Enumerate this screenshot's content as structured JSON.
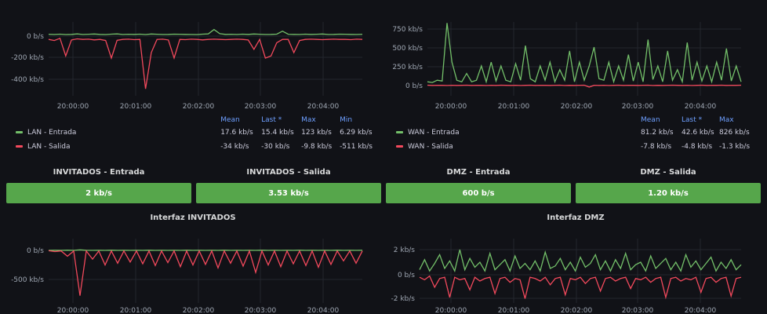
{
  "colors": {
    "background": "#111217",
    "green": "#73bf69",
    "red": "#f2495c",
    "stat_green": "#56a64b",
    "header_blue": "#6e9fff",
    "grid": "#2a2d35"
  },
  "lan_chart": {
    "chart_data": {
      "type": "line",
      "x_ticks": [
        "20:00:00",
        "20:01:00",
        "20:02:00",
        "20:03:00",
        "20:04:00"
      ],
      "y_ticks": [
        "0 b/s",
        "-200 kb/s",
        "-400 kb/s"
      ],
      "series": [
        {
          "name": "LAN - Entrada",
          "color": "#73bf69",
          "values": [
            17,
            15,
            18,
            14,
            16,
            20,
            15,
            17,
            19,
            16,
            14,
            18,
            20,
            15,
            17,
            16,
            18,
            14,
            19,
            17,
            15,
            16,
            18,
            17,
            16,
            15,
            14,
            18,
            20,
            60,
            22,
            16,
            17,
            15,
            18,
            16,
            19,
            17,
            15,
            16,
            18,
            45,
            17,
            16,
            15,
            18,
            16,
            17,
            19,
            15,
            16,
            18,
            17,
            16,
            15,
            17
          ]
        },
        {
          "name": "LAN - Salida",
          "color": "#f2495c",
          "values": [
            -30,
            -40,
            -20,
            -180,
            -35,
            -25,
            -30,
            -28,
            -34,
            -30,
            -40,
            -200,
            -38,
            -30,
            -28,
            -32,
            -30,
            -480,
            -150,
            -30,
            -28,
            -35,
            -200,
            -30,
            -32,
            -28,
            -30,
            -34,
            -30,
            -28,
            -30,
            -32,
            -30,
            -28,
            -30,
            -35,
            -120,
            -30,
            -200,
            -180,
            -60,
            -30,
            -30,
            -150,
            -40,
            -30,
            -28,
            -30,
            -32,
            -30,
            -28,
            -30,
            -30,
            -32,
            -28,
            -30
          ]
        }
      ],
      "legend_headers": [
        "Mean",
        "Last *",
        "Max",
        "Min"
      ],
      "legend_rows": [
        {
          "label": "LAN - Entrada",
          "color": "#73bf69",
          "stats": [
            "17.6 kb/s",
            "15.4 kb/s",
            "123 kb/s",
            "6.29 kb/s"
          ]
        },
        {
          "label": "LAN - Salida",
          "color": "#f2495c",
          "stats": [
            "-34 kb/s",
            "-30 kb/s",
            "-9.8 kb/s",
            "-511 kb/s"
          ]
        }
      ]
    }
  },
  "wan_chart": {
    "chart_data": {
      "type": "line",
      "x_ticks": [
        "20:00:00",
        "20:01:00",
        "20:02:00",
        "20:03:00",
        "20:04:00"
      ],
      "y_ticks": [
        "750 kb/s",
        "500 kb/s",
        "250 kb/s",
        "0 b/s"
      ],
      "series": [
        {
          "name": "WAN - Entrada",
          "color": "#73bf69",
          "values": [
            40,
            30,
            60,
            50,
            820,
            300,
            60,
            40,
            150,
            40,
            60,
            250,
            40,
            300,
            50,
            250,
            60,
            40,
            280,
            60,
            520,
            80,
            40,
            250,
            60,
            300,
            40,
            200,
            60,
            450,
            40,
            300,
            60,
            250,
            500,
            80,
            60,
            300,
            40,
            250,
            60,
            400,
            50,
            300,
            40,
            600,
            70,
            250,
            40,
            450,
            60,
            200,
            40,
            560,
            60,
            300,
            50,
            250,
            40,
            300,
            60,
            480,
            50,
            250,
            40
          ]
        },
        {
          "name": "WAN - Salida",
          "color": "#f2495c",
          "values": [
            -5,
            -8,
            -6,
            -7,
            -9,
            -6,
            -8,
            -7,
            -5,
            -8,
            -6,
            -7,
            -9,
            -6,
            -8,
            -5,
            -7,
            -8,
            -6,
            -9,
            -7,
            -5,
            -8,
            -6,
            -7,
            -8,
            -6,
            -5,
            -9,
            -7,
            -8,
            -6,
            -5,
            -30,
            -7,
            -8,
            -6,
            -9,
            -7,
            -5,
            -8,
            -6,
            -7,
            -8,
            -6,
            -5,
            -9,
            -7,
            -8,
            -6,
            -5,
            -7,
            -8,
            -6,
            -9,
            -7,
            -5,
            -8,
            -6,
            -7,
            -5,
            -8,
            -6,
            -7,
            -5
          ]
        }
      ],
      "legend_headers": [
        "Mean",
        "Last *",
        "Max"
      ],
      "legend_rows": [
        {
          "label": "WAN - Entrada",
          "color": "#73bf69",
          "stats": [
            "81.2 kb/s",
            "42.6 kb/s",
            "826 kb/s"
          ]
        },
        {
          "label": "WAN - Salida",
          "color": "#f2495c",
          "stats": [
            "-7.8 kb/s",
            "-4.8 kb/s",
            "-1.3 kb/s"
          ]
        }
      ]
    }
  },
  "stats": [
    {
      "title": "INVITADOS - Entrada",
      "value": "2 kb/s"
    },
    {
      "title": "INVITADOS - Salida",
      "value": "3.53 kb/s"
    },
    {
      "title": "DMZ - Entrada",
      "value": "600 b/s"
    },
    {
      "title": "DMZ - Salida",
      "value": "1.20 kb/s"
    }
  ],
  "invitados_chart": {
    "title": "Interfaz INVITADOS",
    "chart_data": {
      "type": "line",
      "x_ticks": [
        "20:00:00",
        "20:01:00",
        "20:02:00",
        "20:03:00",
        "20:04:00"
      ],
      "y_ticks": [
        "0 b/s",
        "-500 kb/s"
      ],
      "series": [
        {
          "name": "",
          "color": "#73bf69",
          "values": [
            2,
            3,
            2,
            4,
            2,
            10,
            3,
            2,
            3,
            2,
            4,
            2,
            3,
            2,
            3,
            2,
            4,
            2,
            3,
            2,
            3,
            2,
            4,
            2,
            3,
            2,
            3,
            2,
            4,
            2,
            3,
            2,
            3,
            2,
            4,
            2,
            3,
            2,
            3,
            2,
            4,
            2,
            3,
            2,
            3,
            2,
            4,
            2,
            3,
            2,
            3
          ]
        },
        {
          "name": "",
          "color": "#f2495c",
          "values": [
            -5,
            -20,
            -10,
            -100,
            -10,
            -780,
            -10,
            -150,
            -10,
            -250,
            -10,
            -220,
            -10,
            -200,
            -10,
            -230,
            -10,
            -260,
            -10,
            -210,
            -10,
            -280,
            -10,
            -250,
            -10,
            -240,
            -10,
            -300,
            -10,
            -220,
            -10,
            -270,
            -10,
            -380,
            -10,
            -250,
            -10,
            -280,
            -10,
            -230,
            -10,
            -260,
            -10,
            -290,
            -10,
            -240,
            -10,
            -180,
            -10,
            -220,
            -10
          ]
        }
      ]
    }
  },
  "dmz_chart": {
    "title": "Interfaz DMZ",
    "chart_data": {
      "type": "line",
      "x_ticks": [
        "20:00:00",
        "20:01:00",
        "20:02:00",
        "20:03:00",
        "20:04:00"
      ],
      "y_ticks": [
        "2 kb/s",
        "0 b/s",
        "-2 kb/s"
      ],
      "series": [
        {
          "name": "",
          "color": "#73bf69",
          "values": [
            0.4,
            1.2,
            0.3,
            0.9,
            1.6,
            0.5,
            1.1,
            0.3,
            2.0,
            0.4,
            1.3,
            0.6,
            1.0,
            0.3,
            1.7,
            0.4,
            0.8,
            1.2,
            0.3,
            1.5,
            0.5,
            0.9,
            0.4,
            1.1,
            0.3,
            1.8,
            0.5,
            0.7,
            1.3,
            0.4,
            1.0,
            0.3,
            1.4,
            0.6,
            0.9,
            1.6,
            0.4,
            1.1,
            0.3,
            1.2,
            0.5,
            1.7,
            0.4,
            0.8,
            1.0,
            0.3,
            1.5,
            0.5,
            0.9,
            1.3,
            0.4,
            1.0,
            0.3,
            1.6,
            0.6,
            1.1,
            0.4,
            0.9,
            1.4,
            0.3,
            1.0,
            0.5,
            1.2,
            0.4,
            0.8
          ]
        },
        {
          "name": "",
          "color": "#f2495c",
          "values": [
            -0.2,
            -0.4,
            -0.1,
            -1.0,
            -0.3,
            -0.2,
            -1.8,
            -0.2,
            -0.4,
            -0.3,
            -1.2,
            -0.2,
            -0.5,
            -0.3,
            -0.2,
            -1.5,
            -0.3,
            -0.2,
            -0.6,
            -0.3,
            -0.4,
            -1.9,
            -0.2,
            -0.3,
            -0.5,
            -0.2,
            -0.8,
            -0.3,
            -0.2,
            -1.6,
            -0.3,
            -0.4,
            -0.2,
            -0.7,
            -0.3,
            -0.2,
            -1.3,
            -0.3,
            -0.2,
            -0.5,
            -0.3,
            -0.2,
            -1.1,
            -0.3,
            -0.4,
            -0.2,
            -0.6,
            -0.3,
            -0.2,
            -1.8,
            -0.3,
            -0.2,
            -0.5,
            -0.3,
            -0.4,
            -0.2,
            -1.4,
            -0.3,
            -0.2,
            -0.6,
            -0.3,
            -0.2,
            -1.7,
            -0.3,
            -0.2
          ]
        }
      ]
    }
  }
}
